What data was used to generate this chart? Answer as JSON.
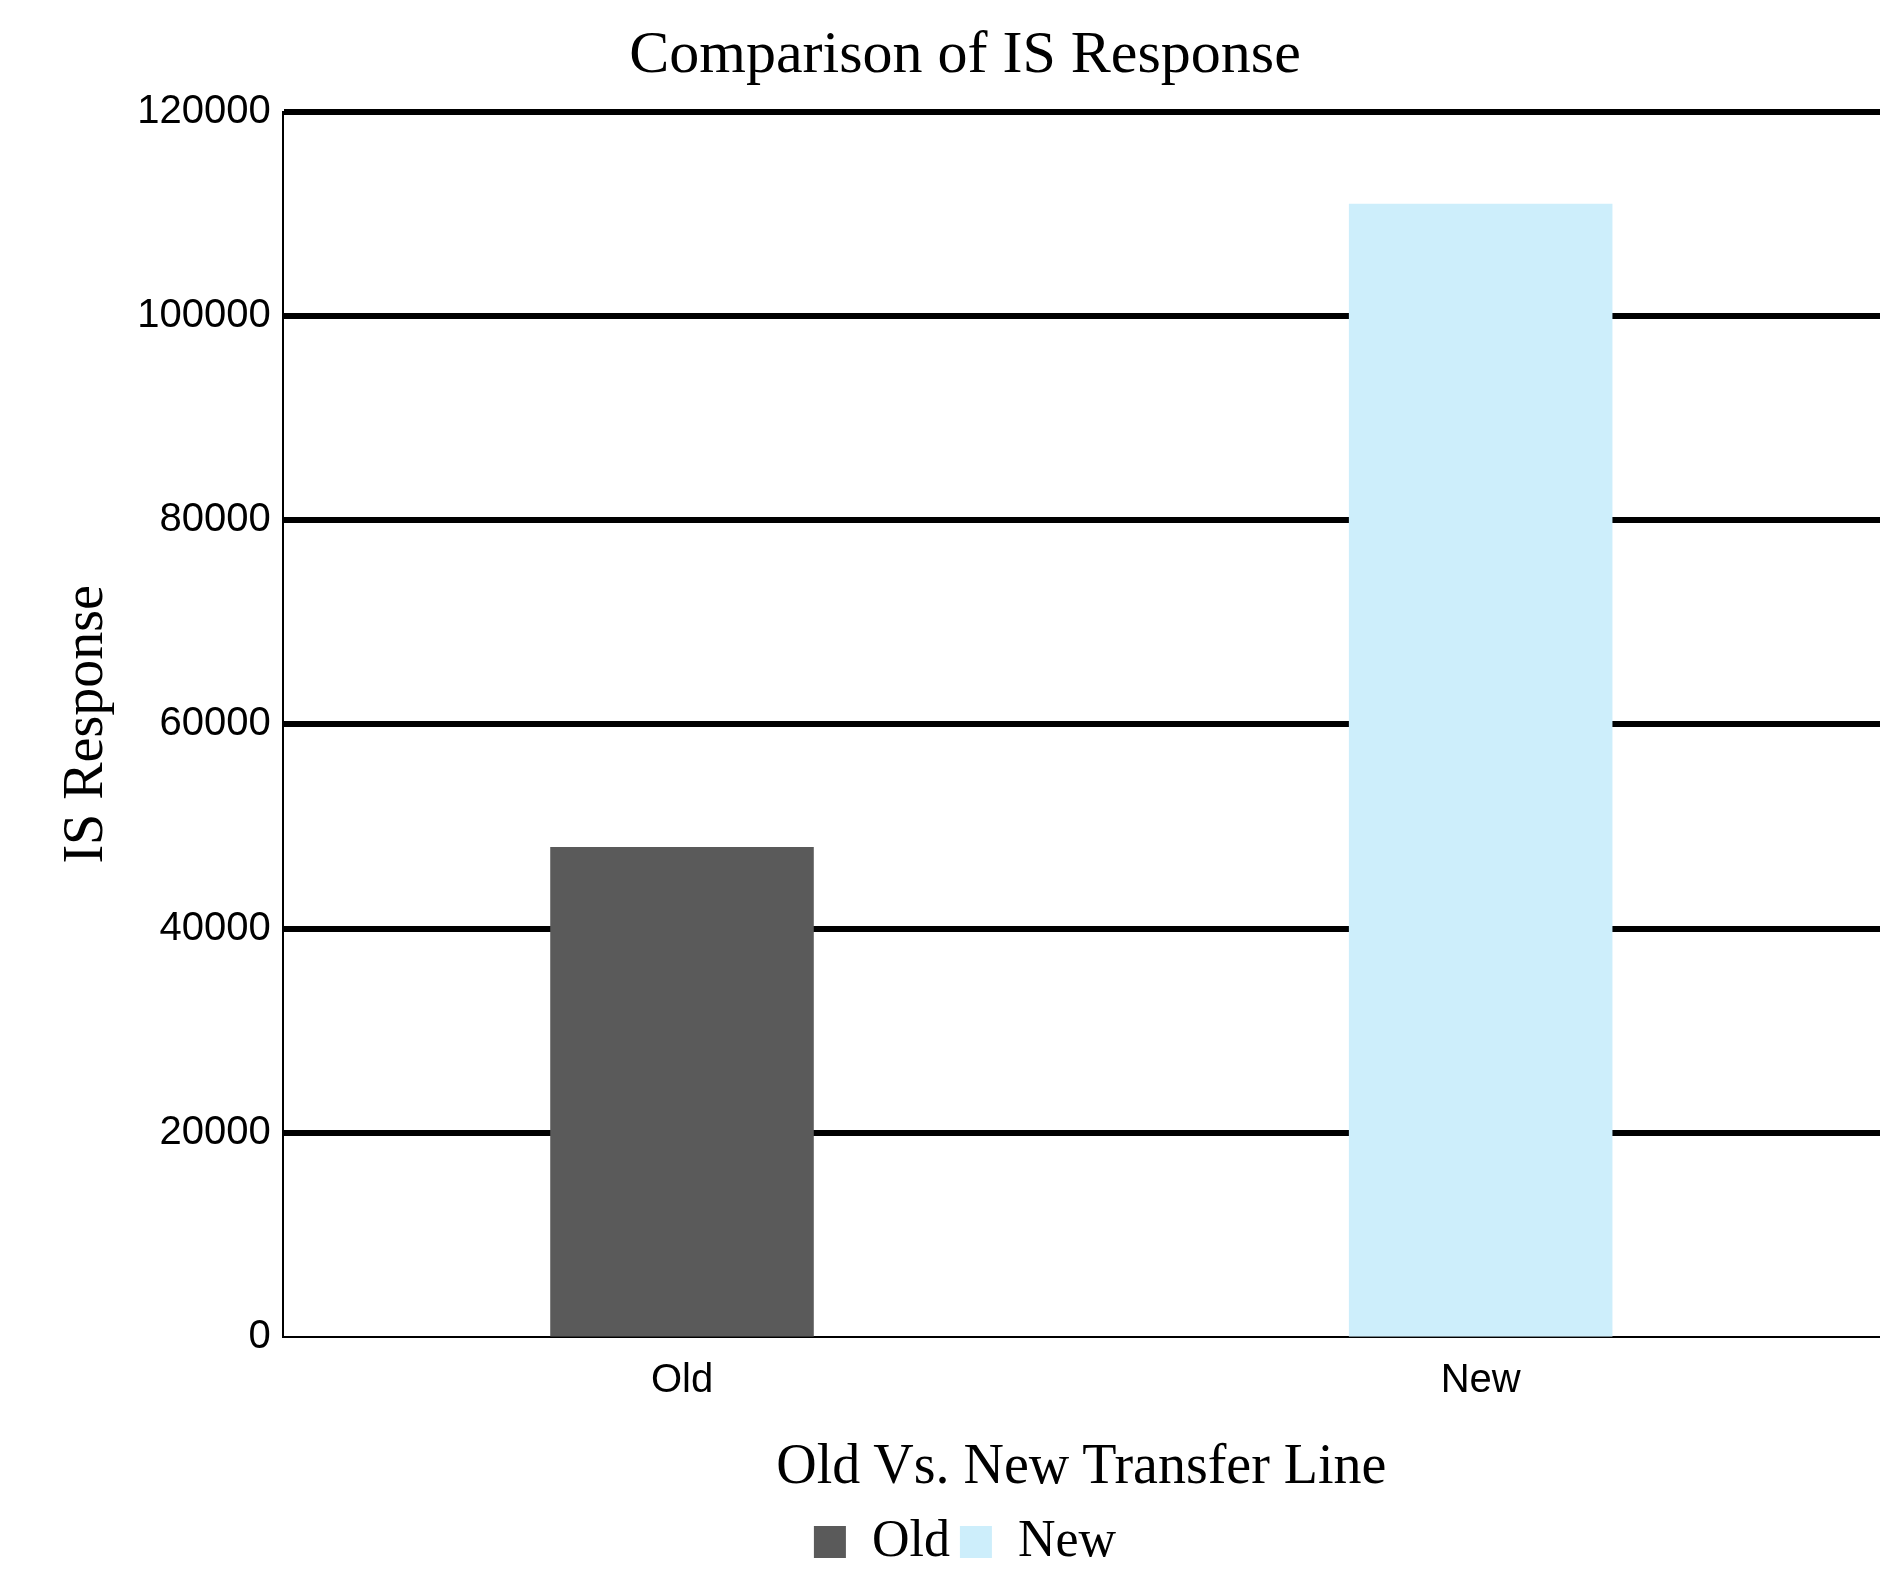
{
  "chart_data": {
    "type": "bar",
    "title": "Comparison of IS Response",
    "xlabel": "Old Vs. New Transfer Line",
    "ylabel": "IS Response",
    "categories": [
      "Old",
      "New"
    ],
    "series": [
      {
        "name": "Old",
        "color": "#5a5a5a",
        "values": [
          48000,
          null
        ]
      },
      {
        "name": "New",
        "color": "#cdeefb",
        "values": [
          null,
          111000
        ]
      }
    ],
    "ylim": [
      0,
      120000
    ],
    "yticks": [
      0,
      20000,
      40000,
      60000,
      80000,
      100000,
      120000
    ],
    "grid": "y",
    "legend": "bottom"
  }
}
